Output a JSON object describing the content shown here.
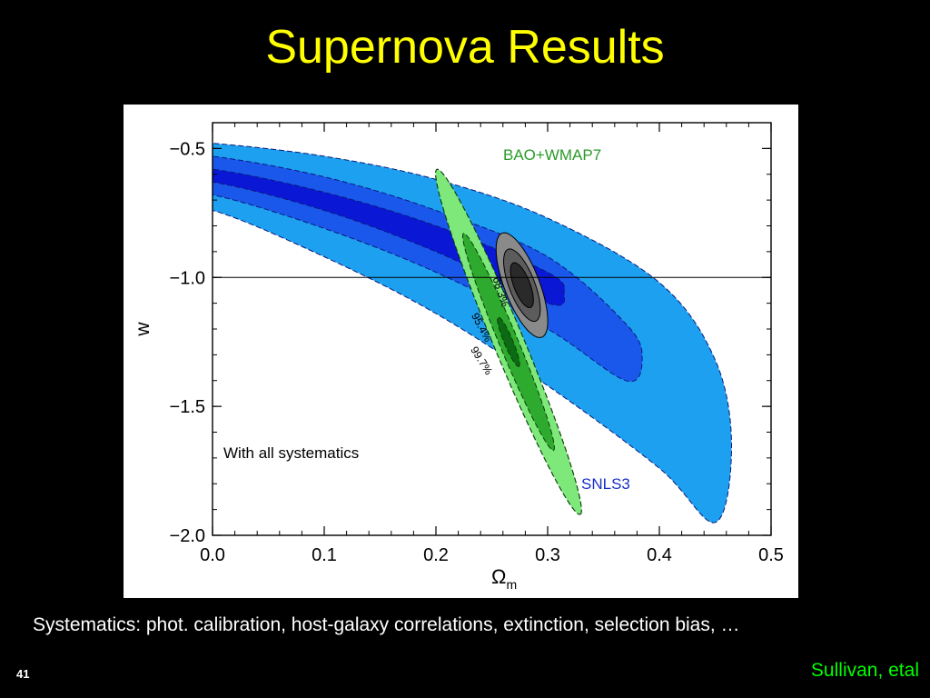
{
  "slide": {
    "title": "Supernova Results",
    "caption": "Systematics: phot. calibration, host-galaxy correlations, extinction, selection bias, …",
    "number": "41",
    "credit": "Sullivan, etal"
  },
  "chart_data": {
    "type": "contour",
    "xlabel": "Ω",
    "xlabel_sub": "m",
    "ylabel": "w",
    "xlim": [
      0.0,
      0.5
    ],
    "ylim": [
      -2.0,
      -0.4
    ],
    "xticks": [
      "0.0",
      "0.1",
      "0.2",
      "0.3",
      "0.4",
      "0.5"
    ],
    "yticks": [
      "−0.5",
      "−1.0",
      "−1.5",
      "−2.0"
    ],
    "reference_line_w": -1.0,
    "annotations": {
      "systematics": "With all systematics",
      "bao": "BAO+WMAP7",
      "snls": "SNLS3"
    },
    "confidence_levels": [
      "68.3%",
      "95.4%",
      "99.7%"
    ],
    "colors": {
      "snls": [
        "#1EA0F0",
        "#1A58EC",
        "#0A18D6"
      ],
      "bao": [
        "#7EE87A",
        "#2EAA2E",
        "#0C6A12"
      ],
      "combined": [
        "#8A8A8A",
        "#5C5C5C",
        "#2A2A2A"
      ],
      "bao_label": "#2A9A2A",
      "snls_label": "#1A2FC8"
    },
    "series": [
      {
        "name": "SNLS3",
        "shape": "band",
        "levels": [
          {
            "confidence": "99.7%",
            "upper": [
              [
                0.0,
                -0.48
              ],
              [
                0.1,
                -0.53
              ],
              [
                0.2,
                -0.62
              ],
              [
                0.3,
                -0.77
              ],
              [
                0.4,
                -1.02
              ],
              [
                0.45,
                -1.32
              ]
            ],
            "lower": [
              [
                0.0,
                -0.74
              ],
              [
                0.1,
                -0.92
              ],
              [
                0.2,
                -1.14
              ],
              [
                0.3,
                -1.42
              ],
              [
                0.4,
                -1.74
              ],
              [
                0.45,
                -1.95
              ]
            ]
          },
          {
            "confidence": "95.4%",
            "upper": [
              [
                0.0,
                -0.53
              ],
              [
                0.1,
                -0.61
              ],
              [
                0.2,
                -0.74
              ],
              [
                0.3,
                -0.92
              ],
              [
                0.37,
                -1.18
              ]
            ],
            "lower": [
              [
                0.0,
                -0.68
              ],
              [
                0.1,
                -0.81
              ],
              [
                0.2,
                -0.98
              ],
              [
                0.3,
                -1.2
              ],
              [
                0.37,
                -1.4
              ]
            ]
          },
          {
            "confidence": "68.3%",
            "upper": [
              [
                0.0,
                -0.58
              ],
              [
                0.1,
                -0.67
              ],
              [
                0.2,
                -0.8
              ],
              [
                0.3,
                -0.98
              ]
            ],
            "lower": [
              [
                0.0,
                -0.63
              ],
              [
                0.1,
                -0.74
              ],
              [
                0.2,
                -0.9
              ],
              [
                0.3,
                -1.1
              ]
            ]
          }
        ]
      },
      {
        "name": "BAO+WMAP7",
        "shape": "ellipse",
        "center": [
          0.265,
          -1.25
        ],
        "levels": [
          {
            "confidence": "99.7%",
            "a": 0.7,
            "b": 0.045,
            "angle_deg": -73
          },
          {
            "confidence": "95.4%",
            "a": 0.44,
            "b": 0.028,
            "angle_deg": -73
          },
          {
            "confidence": "68.3%",
            "a": 0.1,
            "b": 0.013,
            "angle_deg": -73
          }
        ]
      },
      {
        "name": "combined",
        "shape": "ellipse",
        "center": [
          0.277,
          -1.03
        ],
        "levels": [
          {
            "confidence": "99.7%",
            "a": 0.21,
            "b": 0.052,
            "angle_deg": -75
          },
          {
            "confidence": "95.4%",
            "a": 0.145,
            "b": 0.038,
            "angle_deg": -75
          },
          {
            "confidence": "68.3%",
            "a": 0.09,
            "b": 0.024,
            "angle_deg": -75
          }
        ]
      }
    ]
  }
}
